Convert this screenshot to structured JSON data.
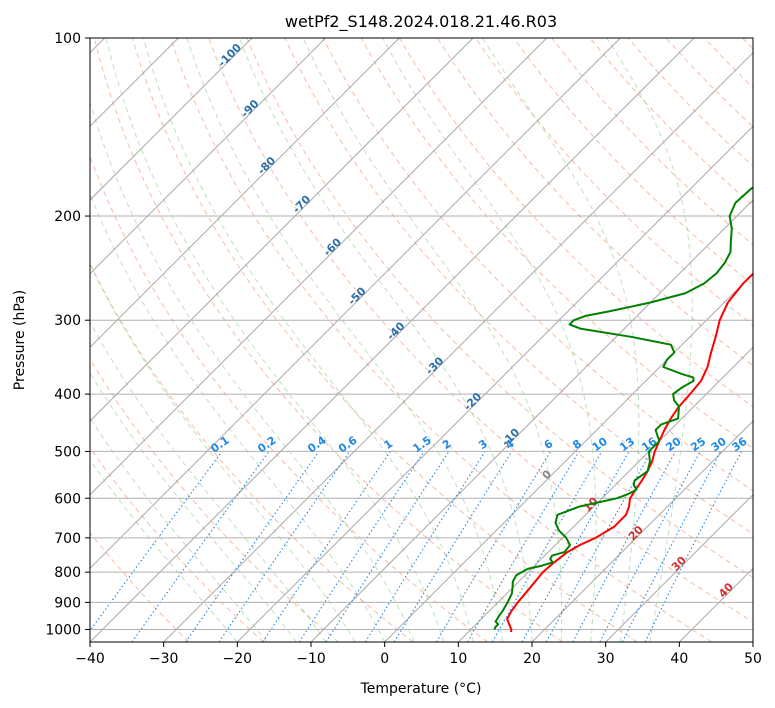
{
  "chart_data": {
    "type": "line",
    "subtype": "skew-t log-p",
    "title": "wetPf2_S148.2024.018.21.46.R03",
    "xlabel": "Temperature (°C)",
    "ylabel": "Pressure (hPa)",
    "xlim": [
      -40,
      50
    ],
    "ylim": [
      1050,
      100
    ],
    "yscale": "log",
    "grid": true,
    "x_ticks": [
      "−40",
      "−30",
      "−20",
      "−10",
      "0",
      "10",
      "20",
      "30",
      "40",
      "50"
    ],
    "y_ticks": [
      "100",
      "200",
      "300",
      "400",
      "500",
      "600",
      "700",
      "800",
      "900",
      "1000"
    ],
    "isotherm_labels": [
      {
        "text": "-100",
        "value": -100,
        "p": 108
      },
      {
        "text": "-90",
        "value": -90,
        "p": 133
      },
      {
        "text": "-80",
        "value": -80,
        "p": 166
      },
      {
        "text": "-70",
        "value": -70,
        "p": 193
      },
      {
        "text": "-60",
        "value": -60,
        "p": 228
      },
      {
        "text": "-50",
        "value": -50,
        "p": 276
      },
      {
        "text": "-40",
        "value": -40,
        "p": 316
      },
      {
        "text": "-30",
        "value": -30,
        "p": 362
      },
      {
        "text": "-20",
        "value": -20,
        "p": 416
      },
      {
        "text": "-10",
        "value": -10,
        "p": 478
      },
      {
        "text": "0",
        "value": 0,
        "p": 553
      },
      {
        "text": "10",
        "value": 10,
        "p": 621
      },
      {
        "text": "20",
        "value": 20,
        "p": 694
      },
      {
        "text": "30",
        "value": 30,
        "p": 782
      },
      {
        "text": "40",
        "value": 40,
        "p": 867
      }
    ],
    "mixing_ratio_labels": [
      "0.1",
      "0.2",
      "0.4",
      "0.6",
      "1",
      "1.5",
      "2",
      "3",
      "4",
      "6",
      "8",
      "10",
      "13",
      "16",
      "20",
      "25",
      "30",
      "36"
    ],
    "series": [
      {
        "name": "Temperature",
        "color": "#ff0000",
        "points": [
          {
            "p": 1010,
            "t": 15.8
          },
          {
            "p": 1000,
            "t": 15.5
          },
          {
            "p": 980,
            "t": 14.5
          },
          {
            "p": 960,
            "t": 13.5
          },
          {
            "p": 930,
            "t": 13.0
          },
          {
            "p": 900,
            "t": 12.7
          },
          {
            "p": 870,
            "t": 12.5
          },
          {
            "p": 840,
            "t": 12.3
          },
          {
            "p": 800,
            "t": 12.0
          },
          {
            "p": 770,
            "t": 12.2
          },
          {
            "p": 740,
            "t": 12.6
          },
          {
            "p": 720,
            "t": 13.3
          },
          {
            "p": 700,
            "t": 14.5
          },
          {
            "p": 670,
            "t": 15.5
          },
          {
            "p": 640,
            "t": 15.5
          },
          {
            "p": 620,
            "t": 14.8
          },
          {
            "p": 600,
            "t": 13.8
          },
          {
            "p": 580,
            "t": 13.4
          },
          {
            "p": 560,
            "t": 13.0
          },
          {
            "p": 540,
            "t": 12.5
          },
          {
            "p": 520,
            "t": 11.8
          },
          {
            "p": 500,
            "t": 10.8
          },
          {
            "p": 480,
            "t": 10.0
          },
          {
            "p": 460,
            "t": 9.2
          },
          {
            "p": 440,
            "t": 8.5
          },
          {
            "p": 420,
            "t": 8.0
          },
          {
            "p": 400,
            "t": 7.8
          },
          {
            "p": 380,
            "t": 7.5
          },
          {
            "p": 360,
            "t": 6.5
          },
          {
            "p": 340,
            "t": 5.0
          },
          {
            "p": 320,
            "t": 3.5
          },
          {
            "p": 300,
            "t": 1.8
          },
          {
            "p": 280,
            "t": 0.5
          },
          {
            "p": 260,
            "t": 0.0
          },
          {
            "p": 250,
            "t": 0.0
          },
          {
            "p": 240,
            "t": 0.5
          },
          {
            "p": 230,
            "t": 2.0
          },
          {
            "p": 220,
            "t": 4.5
          },
          {
            "p": 210,
            "t": 7.5
          },
          {
            "p": 200,
            "t": 10.5
          },
          {
            "p": 190,
            "t": 13.5
          },
          {
            "p": 180,
            "t": 16.0
          },
          {
            "p": 170,
            "t": 18.0
          },
          {
            "p": 160,
            "t": 19.5
          },
          {
            "p": 150,
            "t": 20.5
          },
          {
            "p": 145,
            "t": 21.0
          },
          {
            "p": 140,
            "t": 21.5
          },
          {
            "p": 130,
            "t": 22.5
          },
          {
            "p": 125,
            "t": 24.0
          },
          {
            "p": 120,
            "t": 25.5
          },
          {
            "p": 115,
            "t": 26.5
          },
          {
            "p": 110,
            "t": 27.0
          },
          {
            "p": 105,
            "t": 27.0
          },
          {
            "p": 100,
            "t": 27.0
          }
        ]
      },
      {
        "name": "Dewpoint",
        "color": "#008000",
        "points": [
          {
            "p": 1000,
            "t": 13.2
          },
          {
            "p": 990,
            "t": 13.0
          },
          {
            "p": 980,
            "t": 13.0
          },
          {
            "p": 970,
            "t": 12.3
          },
          {
            "p": 950,
            "t": 12.0
          },
          {
            "p": 930,
            "t": 11.8
          },
          {
            "p": 900,
            "t": 11.3
          },
          {
            "p": 870,
            "t": 10.7
          },
          {
            "p": 850,
            "t": 10.0
          },
          {
            "p": 830,
            "t": 9.2
          },
          {
            "p": 810,
            "t": 8.8
          },
          {
            "p": 790,
            "t": 9.5
          },
          {
            "p": 780,
            "t": 11.0
          },
          {
            "p": 770,
            "t": 12.0
          },
          {
            "p": 760,
            "t": 11.2
          },
          {
            "p": 750,
            "t": 11.0
          },
          {
            "p": 740,
            "t": 12.2
          },
          {
            "p": 720,
            "t": 12.0
          },
          {
            "p": 700,
            "t": 10.5
          },
          {
            "p": 680,
            "t": 8.5
          },
          {
            "p": 660,
            "t": 7.0
          },
          {
            "p": 640,
            "t": 6.2
          },
          {
            "p": 620,
            "t": 8.0
          },
          {
            "p": 610,
            "t": 10.0
          },
          {
            "p": 600,
            "t": 12.0
          },
          {
            "p": 590,
            "t": 13.0
          },
          {
            "p": 580,
            "t": 13.5
          },
          {
            "p": 570,
            "t": 12.5
          },
          {
            "p": 560,
            "t": 12.0
          },
          {
            "p": 540,
            "t": 12.5
          },
          {
            "p": 520,
            "t": 11.5
          },
          {
            "p": 500,
            "t": 10.0
          },
          {
            "p": 480,
            "t": 10.0
          },
          {
            "p": 470,
            "t": 9.0
          },
          {
            "p": 460,
            "t": 8.0
          },
          {
            "p": 450,
            "t": 8.0
          },
          {
            "p": 440,
            "t": 9.5
          },
          {
            "p": 420,
            "t": 8.0
          },
          {
            "p": 410,
            "t": 6.5
          },
          {
            "p": 400,
            "t": 5.5
          },
          {
            "p": 390,
            "t": 5.8
          },
          {
            "p": 380,
            "t": 6.5
          },
          {
            "p": 375,
            "t": 6.0
          },
          {
            "p": 370,
            "t": 4.0
          },
          {
            "p": 360,
            "t": 0.5
          },
          {
            "p": 350,
            "t": 0.0
          },
          {
            "p": 340,
            "t": 0.0
          },
          {
            "p": 330,
            "t": -1.5
          },
          {
            "p": 320,
            "t": -8.0
          },
          {
            "p": 310,
            "t": -16.0
          },
          {
            "p": 305,
            "t": -18.0
          },
          {
            "p": 300,
            "t": -18.0
          },
          {
            "p": 295,
            "t": -17.0
          },
          {
            "p": 290,
            "t": -14.5
          },
          {
            "p": 280,
            "t": -10.0
          },
          {
            "p": 270,
            "t": -6.5
          },
          {
            "p": 260,
            "t": -5.3
          },
          {
            "p": 250,
            "t": -5.0
          },
          {
            "p": 240,
            "t": -5.3
          },
          {
            "p": 230,
            "t": -6.0
          },
          {
            "p": 220,
            "t": -7.5
          },
          {
            "p": 210,
            "t": -9.0
          },
          {
            "p": 200,
            "t": -11.0
          },
          {
            "p": 190,
            "t": -12.0
          },
          {
            "p": 180,
            "t": -11.8
          },
          {
            "p": 170,
            "t": -11.0
          },
          {
            "p": 165,
            "t": -10.0
          },
          {
            "p": 160,
            "t": -8.0
          },
          {
            "p": 155,
            "t": -6.5
          },
          {
            "p": 150,
            "t": -5.5
          },
          {
            "p": 140,
            "t": -4.0
          },
          {
            "p": 130,
            "t": -2.5
          },
          {
            "p": 120,
            "t": -1.0
          },
          {
            "p": 110,
            "t": 0.5
          },
          {
            "p": 105,
            "t": 1.5
          },
          {
            "p": 100,
            "t": 2.0
          }
        ]
      }
    ]
  }
}
